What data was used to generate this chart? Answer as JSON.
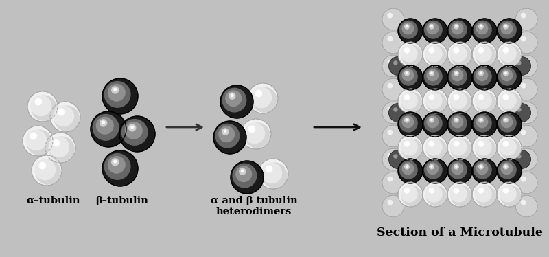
{
  "bg_color": "#c0c0c0",
  "title": "Section of a Microtubule",
  "label_alpha": "α–tubulin",
  "label_beta": "β–tubulin",
  "label_heterodimers": "α and β tubulin\nheterodimers",
  "label_fontsize": 10.5,
  "title_fontsize": 12.5,
  "alpha_face": "#e8e8e8",
  "alpha_edge": "#aaaaaa",
  "beta_face": "#505050",
  "beta_edge": "#111111",
  "mt_dark_face": "#585858",
  "mt_dark_edge": "#111111",
  "mt_light_face": "#d8d8d8",
  "mt_light_edge": "#888888"
}
